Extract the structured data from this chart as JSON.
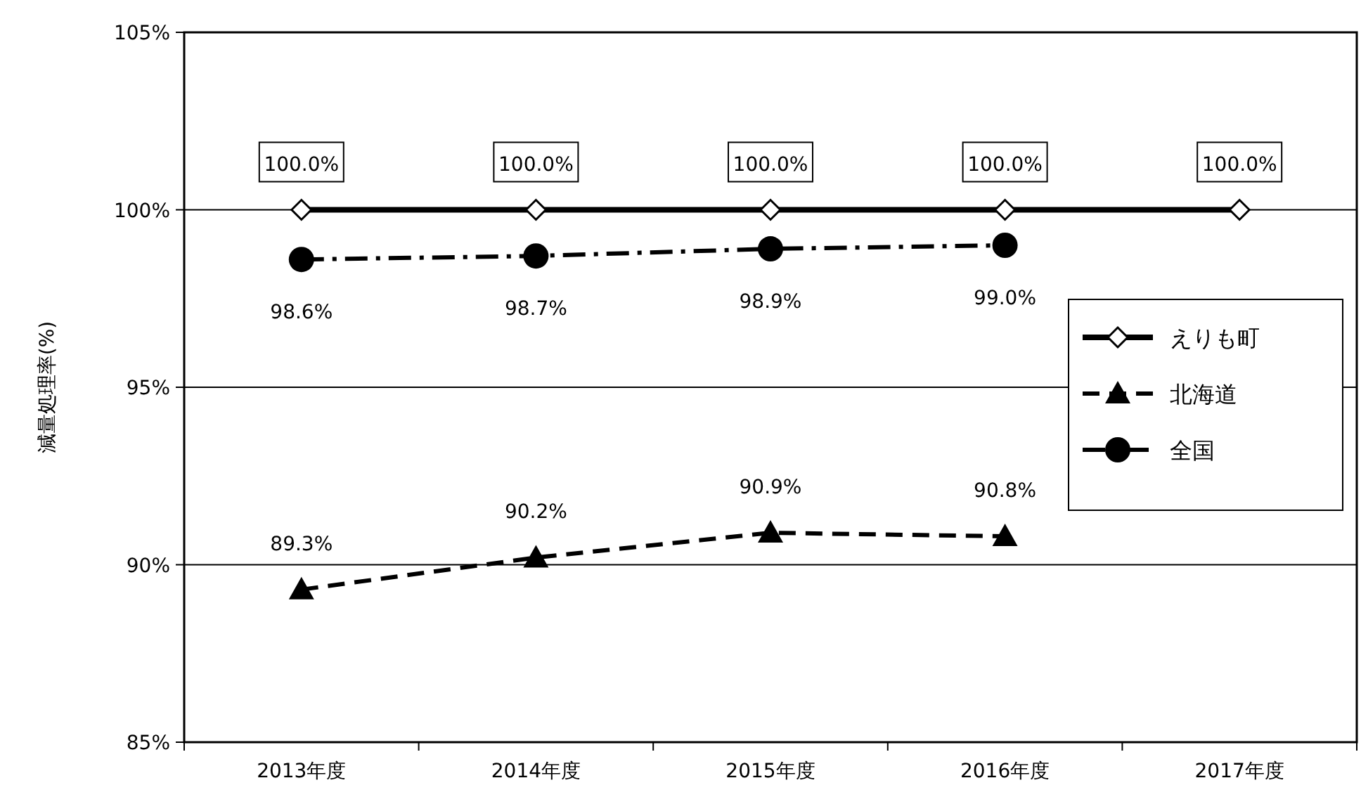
{
  "chart_data": {
    "type": "line",
    "ylabel": "減量処理率(%)",
    "categories": [
      "2013年度",
      "2014年度",
      "2015年度",
      "2016年度",
      "2017年度"
    ],
    "series": [
      {
        "name": "えりも町",
        "color": "#000000",
        "values": [
          100,
          100,
          100,
          100,
          100
        ],
        "marker": "diamond",
        "line_style": "solid",
        "value_labels": [
          "100.0%",
          "100.0%",
          "100.0%",
          "100.0%",
          "100.0%"
        ]
      },
      {
        "name": "北海道",
        "color": "#000000",
        "values": [
          89.3,
          90.2,
          90.9,
          90.8,
          null
        ],
        "marker": "triangle",
        "line_style": "dashed",
        "value_labels": [
          "89.3%",
          "90.2%",
          "90.9%",
          "90.8%",
          null
        ]
      },
      {
        "name": "全国",
        "color": "#000000",
        "values": [
          98.6,
          98.7,
          98.9,
          99.0,
          null
        ],
        "marker": "circle",
        "line_style": "dashdot",
        "value_labels": [
          "98.6%",
          "98.7%",
          "98.9%",
          "99.0%",
          null
        ]
      }
    ],
    "ylim": [
      85,
      105
    ],
    "yticks": [
      {
        "value": 85,
        "label": "85%"
      },
      {
        "value": 90,
        "label": "90%"
      },
      {
        "value": 95,
        "label": "95%"
      },
      {
        "value": 100,
        "label": "100%"
      },
      {
        "value": 105,
        "label": "105%"
      }
    ],
    "grid": "y",
    "legend": "right"
  }
}
